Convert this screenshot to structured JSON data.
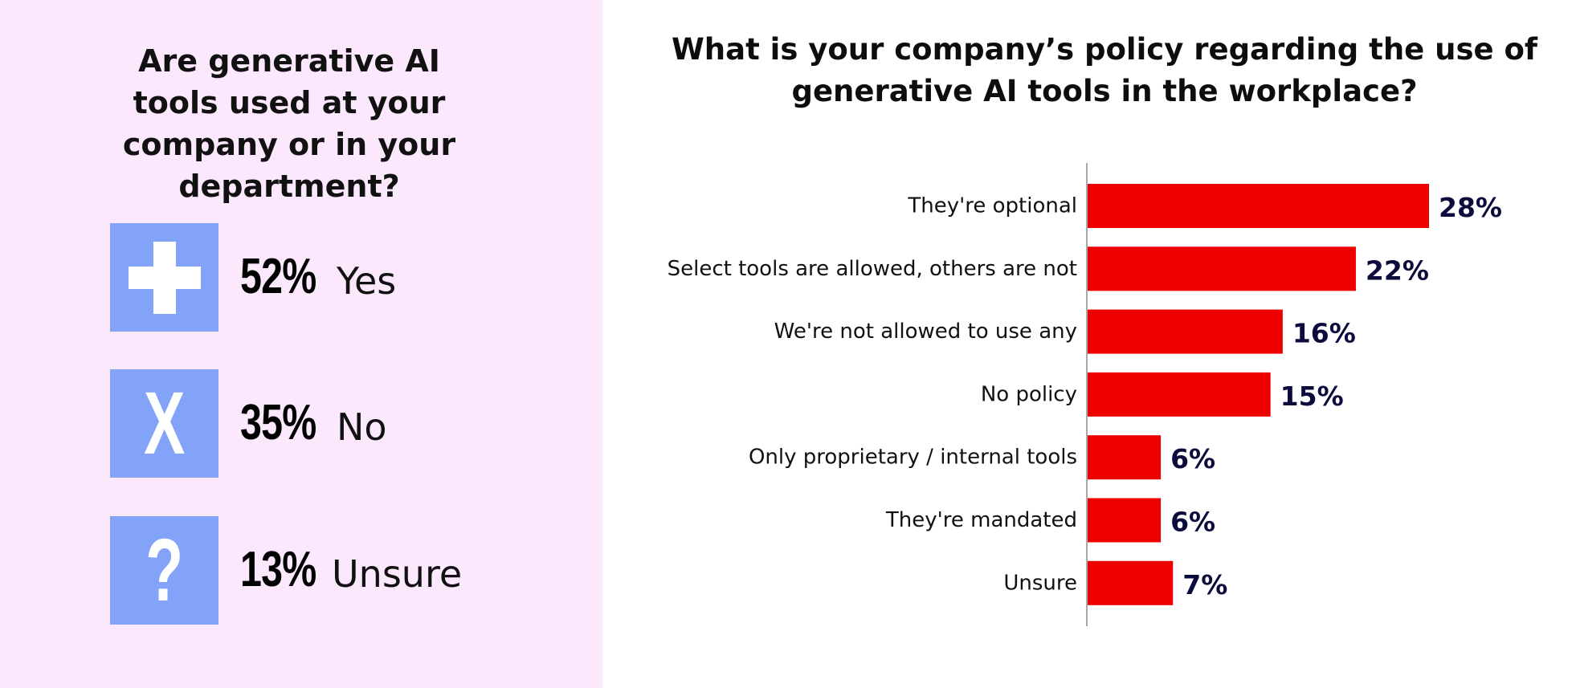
{
  "left": {
    "title": "Are generative AI tools used at your company or in your department?",
    "stats": [
      {
        "icon": "plus-icon",
        "glyph": "+",
        "percent": "52%",
        "label": "Yes"
      },
      {
        "icon": "x-icon",
        "glyph": "X",
        "percent": "35%",
        "label": "No"
      },
      {
        "icon": "question-icon",
        "glyph": "?",
        "percent": "13%",
        "label": "Unsure"
      }
    ],
    "icon_color": "#82a3f8",
    "background": "#fbe8fc"
  },
  "chart_data": {
    "type": "bar",
    "orientation": "horizontal",
    "title": "What is your company’s policy regarding the use of generative AI tools in the workplace?",
    "categories": [
      "They're optional",
      "Select tools are allowed, others are not",
      "We're not allowed to use any",
      "No policy",
      "Only proprietary / internal tools",
      "They're mandated",
      "Unsure"
    ],
    "values": [
      28,
      22,
      16,
      15,
      6,
      6,
      7
    ],
    "value_labels": [
      "28%",
      "22%",
      "16%",
      "15%",
      "6%",
      "6%",
      "7%"
    ],
    "unit": "%",
    "xlim": [
      0,
      30
    ],
    "bar_color": "#ee0000",
    "label_color": "#0c0c3c",
    "grid": false
  }
}
